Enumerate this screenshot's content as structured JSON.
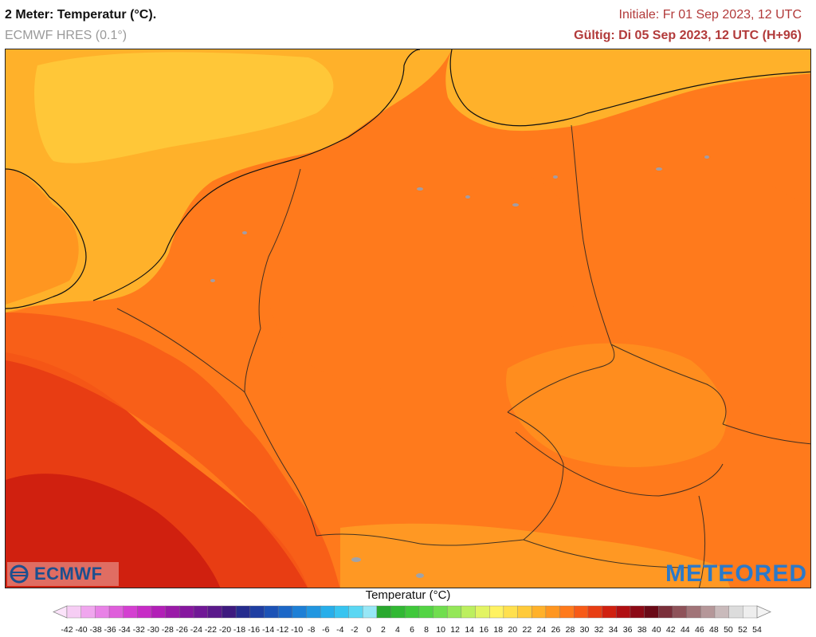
{
  "header": {
    "title": "2 Meter: Temperatur (°C).",
    "model": "ECMWF HRES (0.1°)",
    "initiale": "Initiale: Fr 01 Sep 2023, 12 UTC",
    "gueltig": "Gültig: Di 05 Sep 2023, 12 UTC (H+96)"
  },
  "logos": {
    "left": "ECMWF",
    "right": "METEORED"
  },
  "legend": {
    "title": "Temperatur (°C)",
    "ticks": [
      -42,
      -40,
      -38,
      -36,
      -34,
      -32,
      -30,
      -28,
      -26,
      -24,
      -22,
      -20,
      -18,
      -16,
      -14,
      -12,
      -10,
      -8,
      -6,
      -4,
      -2,
      0,
      2,
      4,
      6,
      8,
      10,
      12,
      14,
      16,
      18,
      20,
      22,
      24,
      26,
      28,
      30,
      32,
      34,
      36,
      38,
      40,
      42,
      44,
      46,
      48,
      50,
      52,
      54
    ],
    "colors": [
      "#f6cdf4",
      "#f0a6ee",
      "#e882e6",
      "#df5edb",
      "#d43fd1",
      "#c72cc6",
      "#b21fb7",
      "#9a1aa8",
      "#86179f",
      "#701896",
      "#5a198b",
      "#3e1a7f",
      "#262c8e",
      "#1f3ea2",
      "#1c52b6",
      "#1c67c7",
      "#1d7fd6",
      "#2196e0",
      "#27aeea",
      "#37c4f0",
      "#5ad7f3",
      "#97e7f6",
      "#29a82e",
      "#31b833",
      "#3fc83a",
      "#53d444",
      "#70de4e",
      "#94e758",
      "#bcef5e",
      "#e2f463",
      "#fff262",
      "#ffe04e",
      "#ffca3a",
      "#ffb12a",
      "#ff9620",
      "#ff7a1c",
      "#f75a17",
      "#e83d13",
      "#d0200f",
      "#b00f12",
      "#8c0a16",
      "#6a0a17",
      "#7a2f3a",
      "#8e5259",
      "#a17478",
      "#b59799",
      "#c9babb",
      "#dcdcdc",
      "#eeeeee"
    ]
  },
  "map": {
    "base_color": "#ff7a1c",
    "regions": [
      {
        "name": "northsea-cool-zone",
        "color": "#ffb12a"
      },
      {
        "name": "northsea-coolest",
        "color": "#ffca3a"
      },
      {
        "name": "baltic-cool-zone",
        "color": "#ffb12a"
      },
      {
        "name": "uk-land-warm",
        "color": "#ff9620"
      },
      {
        "name": "france-hot-zone",
        "color": "#f75a17"
      },
      {
        "name": "southwest-hottest",
        "color": "#e83d13"
      },
      {
        "name": "southwest-extreme",
        "color": "#d0200f"
      },
      {
        "name": "central-germany-warm",
        "color": "#ff7a1c"
      },
      {
        "name": "poland-warm",
        "color": "#ff7a1c"
      },
      {
        "name": "czech-cooler",
        "color": "#ff9620"
      },
      {
        "name": "alps-cool",
        "color": "#ffb12a"
      }
    ]
  }
}
